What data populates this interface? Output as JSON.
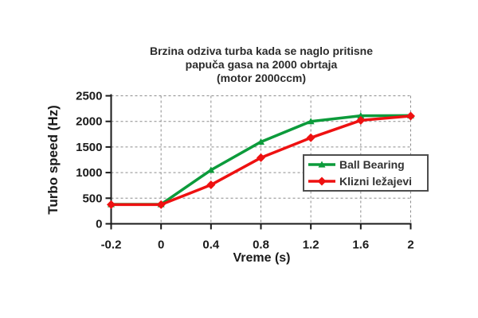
{
  "title": {
    "lines": [
      "Brzina odziva turba kada se naglo pritisne",
      "papuča gasa na 2000 obrtaja",
      "(motor 2000ccm)"
    ]
  },
  "chart_data": {
    "type": "line",
    "title": "Brzina odziva turba kada se naglo pritisne papuča gasa na 2000 obrtaja (motor 2000ccm)",
    "categories": [
      "-0.2",
      "0",
      "0.4",
      "0.8",
      "1.2",
      "1.6",
      "2"
    ],
    "series": [
      {
        "name": "Ball Bearing",
        "color": "#0c9b3b",
        "marker": "triangle",
        "values": [
          380,
          380,
          1050,
          1600,
          2000,
          2110,
          2115
        ]
      },
      {
        "name": "Klizni ležajevi",
        "color": "#ee1111",
        "marker": "diamond",
        "values": [
          375,
          375,
          760,
          1290,
          1680,
          2020,
          2105
        ]
      }
    ],
    "xlabel": "Vreme (s)",
    "ylabel": "Turbo speed (Hz)",
    "ylim": [
      0,
      2500
    ],
    "yticks": [
      0,
      500,
      1000,
      1500,
      2000,
      2500
    ],
    "grid": "dashed",
    "legend_position": "inside-right"
  },
  "colors": {
    "background": "#ffffff",
    "grid": "#8c8c8c",
    "axis": "#1a1a1a",
    "text": "#262626",
    "legend_border": "#4d4d4d"
  }
}
